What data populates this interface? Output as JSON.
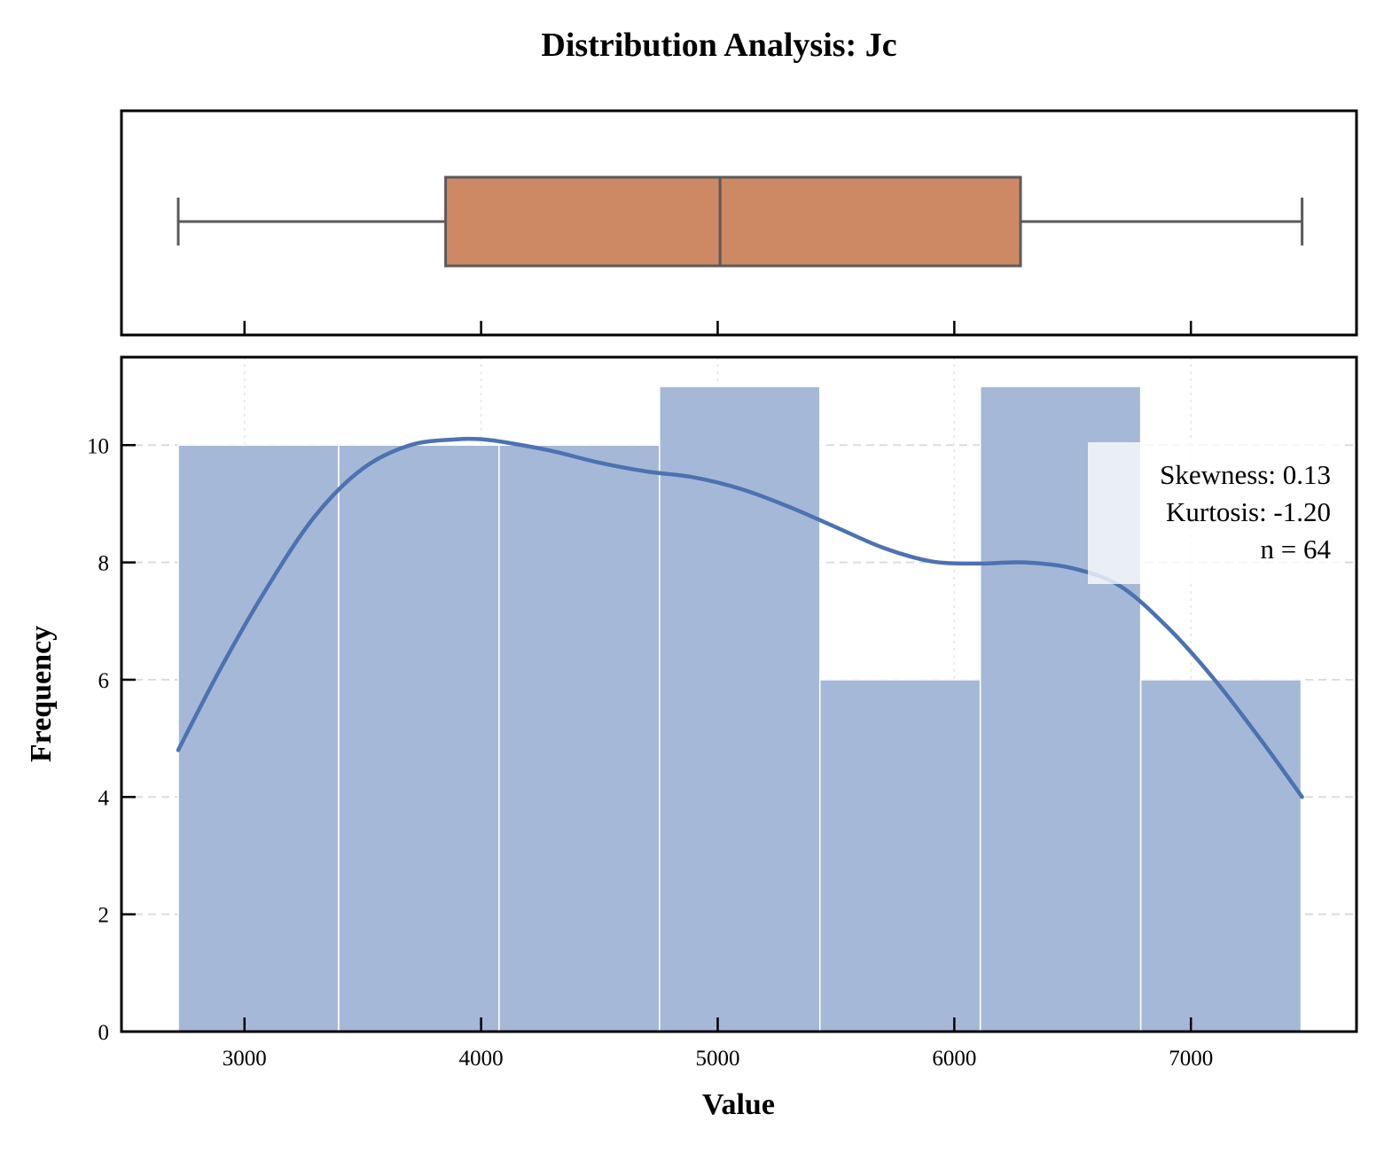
{
  "figure_title": "Distribution Analysis: Jc",
  "colors": {
    "box_fill": "#cc8963",
    "box_edge": "#5a5a5a",
    "hist_fill": "#a6b8d7",
    "kde_line": "#4c72b0",
    "grid": "#dddddd"
  },
  "chart_data": [
    {
      "type": "box",
      "orientation": "horizontal",
      "whisker_low": 2720,
      "q1": 3850,
      "median": 5010,
      "q3": 6280,
      "whisker_high": 7470,
      "xlim": [
        2480,
        7700
      ]
    },
    {
      "type": "bar",
      "subtype": "histogram_with_kde",
      "xlabel": "Value",
      "ylabel": "Frequency",
      "xlim": [
        2480,
        7700
      ],
      "ylim": [
        0,
        11.5
      ],
      "x_ticks": [
        3000,
        4000,
        5000,
        6000,
        7000
      ],
      "y_ticks": [
        0,
        2,
        4,
        6,
        8,
        10
      ],
      "bins": [
        {
          "start": 2720,
          "end": 3398,
          "count": 10
        },
        {
          "start": 3398,
          "end": 4076,
          "count": 10
        },
        {
          "start": 4076,
          "end": 4754,
          "count": 10
        },
        {
          "start": 4754,
          "end": 5432,
          "count": 11
        },
        {
          "start": 5432,
          "end": 6110,
          "count": 6
        },
        {
          "start": 6110,
          "end": 6788,
          "count": 11
        },
        {
          "start": 6788,
          "end": 7466,
          "count": 6
        }
      ],
      "kde": {
        "x": [
          2720,
          2900,
          3100,
          3300,
          3500,
          3700,
          3900,
          4000,
          4100,
          4300,
          4500,
          4700,
          4900,
          5100,
          5300,
          5500,
          5700,
          5900,
          6100,
          6300,
          6500,
          6700,
          6900,
          7100,
          7300,
          7470
        ],
        "y": [
          4.8,
          6.2,
          7.6,
          8.8,
          9.6,
          10.0,
          10.1,
          10.1,
          10.05,
          9.9,
          9.7,
          9.55,
          9.45,
          9.25,
          8.95,
          8.6,
          8.25,
          8.02,
          7.98,
          8.0,
          7.9,
          7.6,
          6.9,
          6.0,
          4.95,
          4.0
        ]
      },
      "annotation": {
        "lines": [
          "Skewness: 0.13",
          "Kurtosis: -1.20",
          "n = 64"
        ],
        "position": "top-right"
      }
    }
  ]
}
